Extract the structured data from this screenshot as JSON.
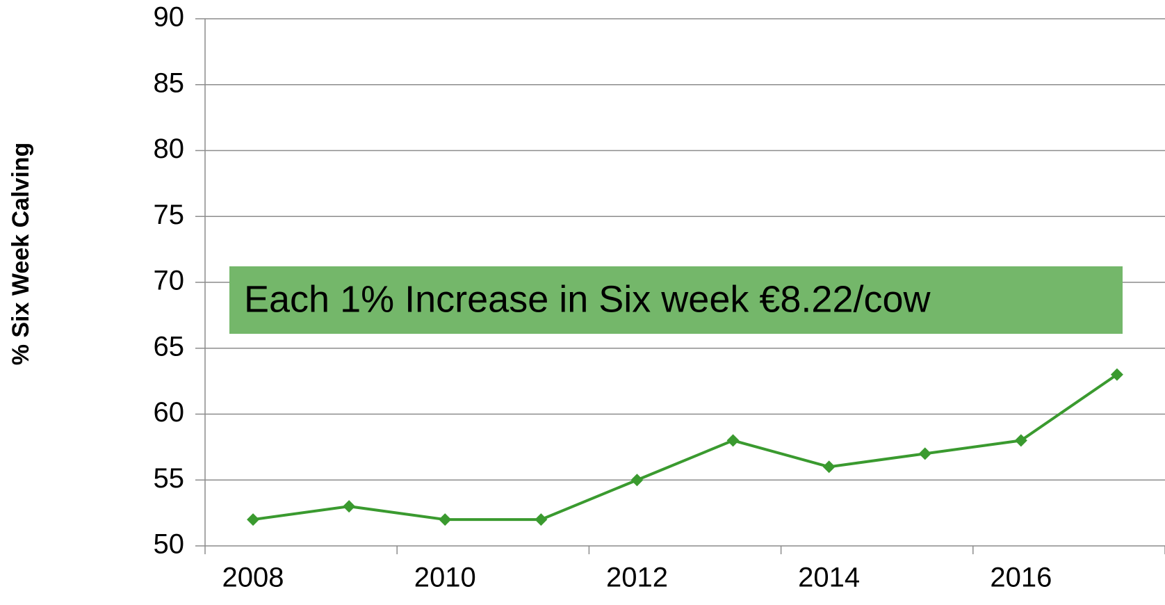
{
  "chart_data": {
    "type": "line",
    "y_label": "% Six Week Calving",
    "annotation": "Each 1% Increase in Six week €8.22/cow",
    "annotation_color": "#74b76a",
    "categories": [
      "2008",
      null,
      "2010",
      null,
      "2012",
      null,
      "2014",
      null,
      "2016",
      null
    ],
    "series": [
      {
        "name": "% Six Week Calving",
        "color": "#3a9a2f",
        "values": [
          52,
          53,
          52,
          52,
          55,
          58,
          56,
          57,
          58,
          63
        ]
      }
    ],
    "ylim": [
      50,
      90
    ],
    "yticks": [
      50,
      55,
      60,
      65,
      70,
      75,
      80,
      85,
      90
    ],
    "grid": true
  }
}
